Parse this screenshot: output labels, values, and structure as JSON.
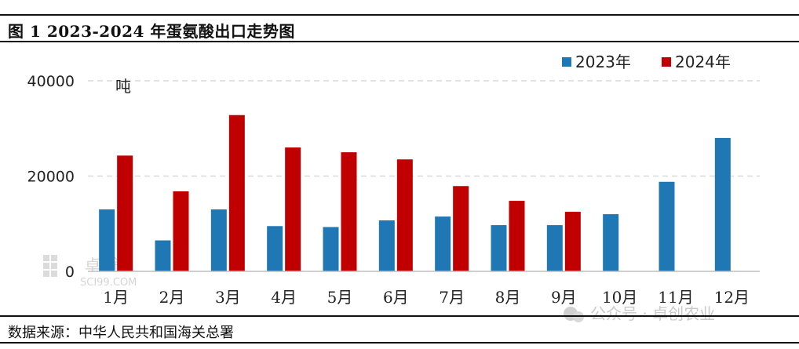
{
  "header": {
    "title": "图 1 2023-2024 年蛋氨酸出口走势图"
  },
  "footer": {
    "source": "数据来源：中华人民共和国海关总署"
  },
  "watermark": {
    "left_text": "卓  途",
    "left_sub": "SCI99.COM",
    "right_text": "公众号 · 卓创农业"
  },
  "colors": {
    "s2023": "#1f77b4",
    "s2024": "#c00000",
    "grid": "#d9d9d9",
    "axis": "#bfbfbf"
  },
  "chart_data": {
    "type": "bar",
    "unit": "吨",
    "categories": [
      "1月",
      "2月",
      "3月",
      "4月",
      "5月",
      "6月",
      "7月",
      "8月",
      "9月",
      "10月",
      "11月",
      "12月"
    ],
    "ylim": [
      0,
      40000
    ],
    "yticks": [
      0,
      20000,
      40000
    ],
    "grid": true,
    "legend": "top-right",
    "series": [
      {
        "name": "2023年",
        "values": [
          13000,
          6500,
          13000,
          9500,
          9300,
          10700,
          11500,
          9700,
          9700,
          12000,
          18800,
          28000
        ]
      },
      {
        "name": "2024年",
        "values": [
          24300,
          16800,
          32800,
          26000,
          25000,
          23500,
          17900,
          14800,
          12500,
          null,
          null,
          null
        ]
      }
    ]
  }
}
